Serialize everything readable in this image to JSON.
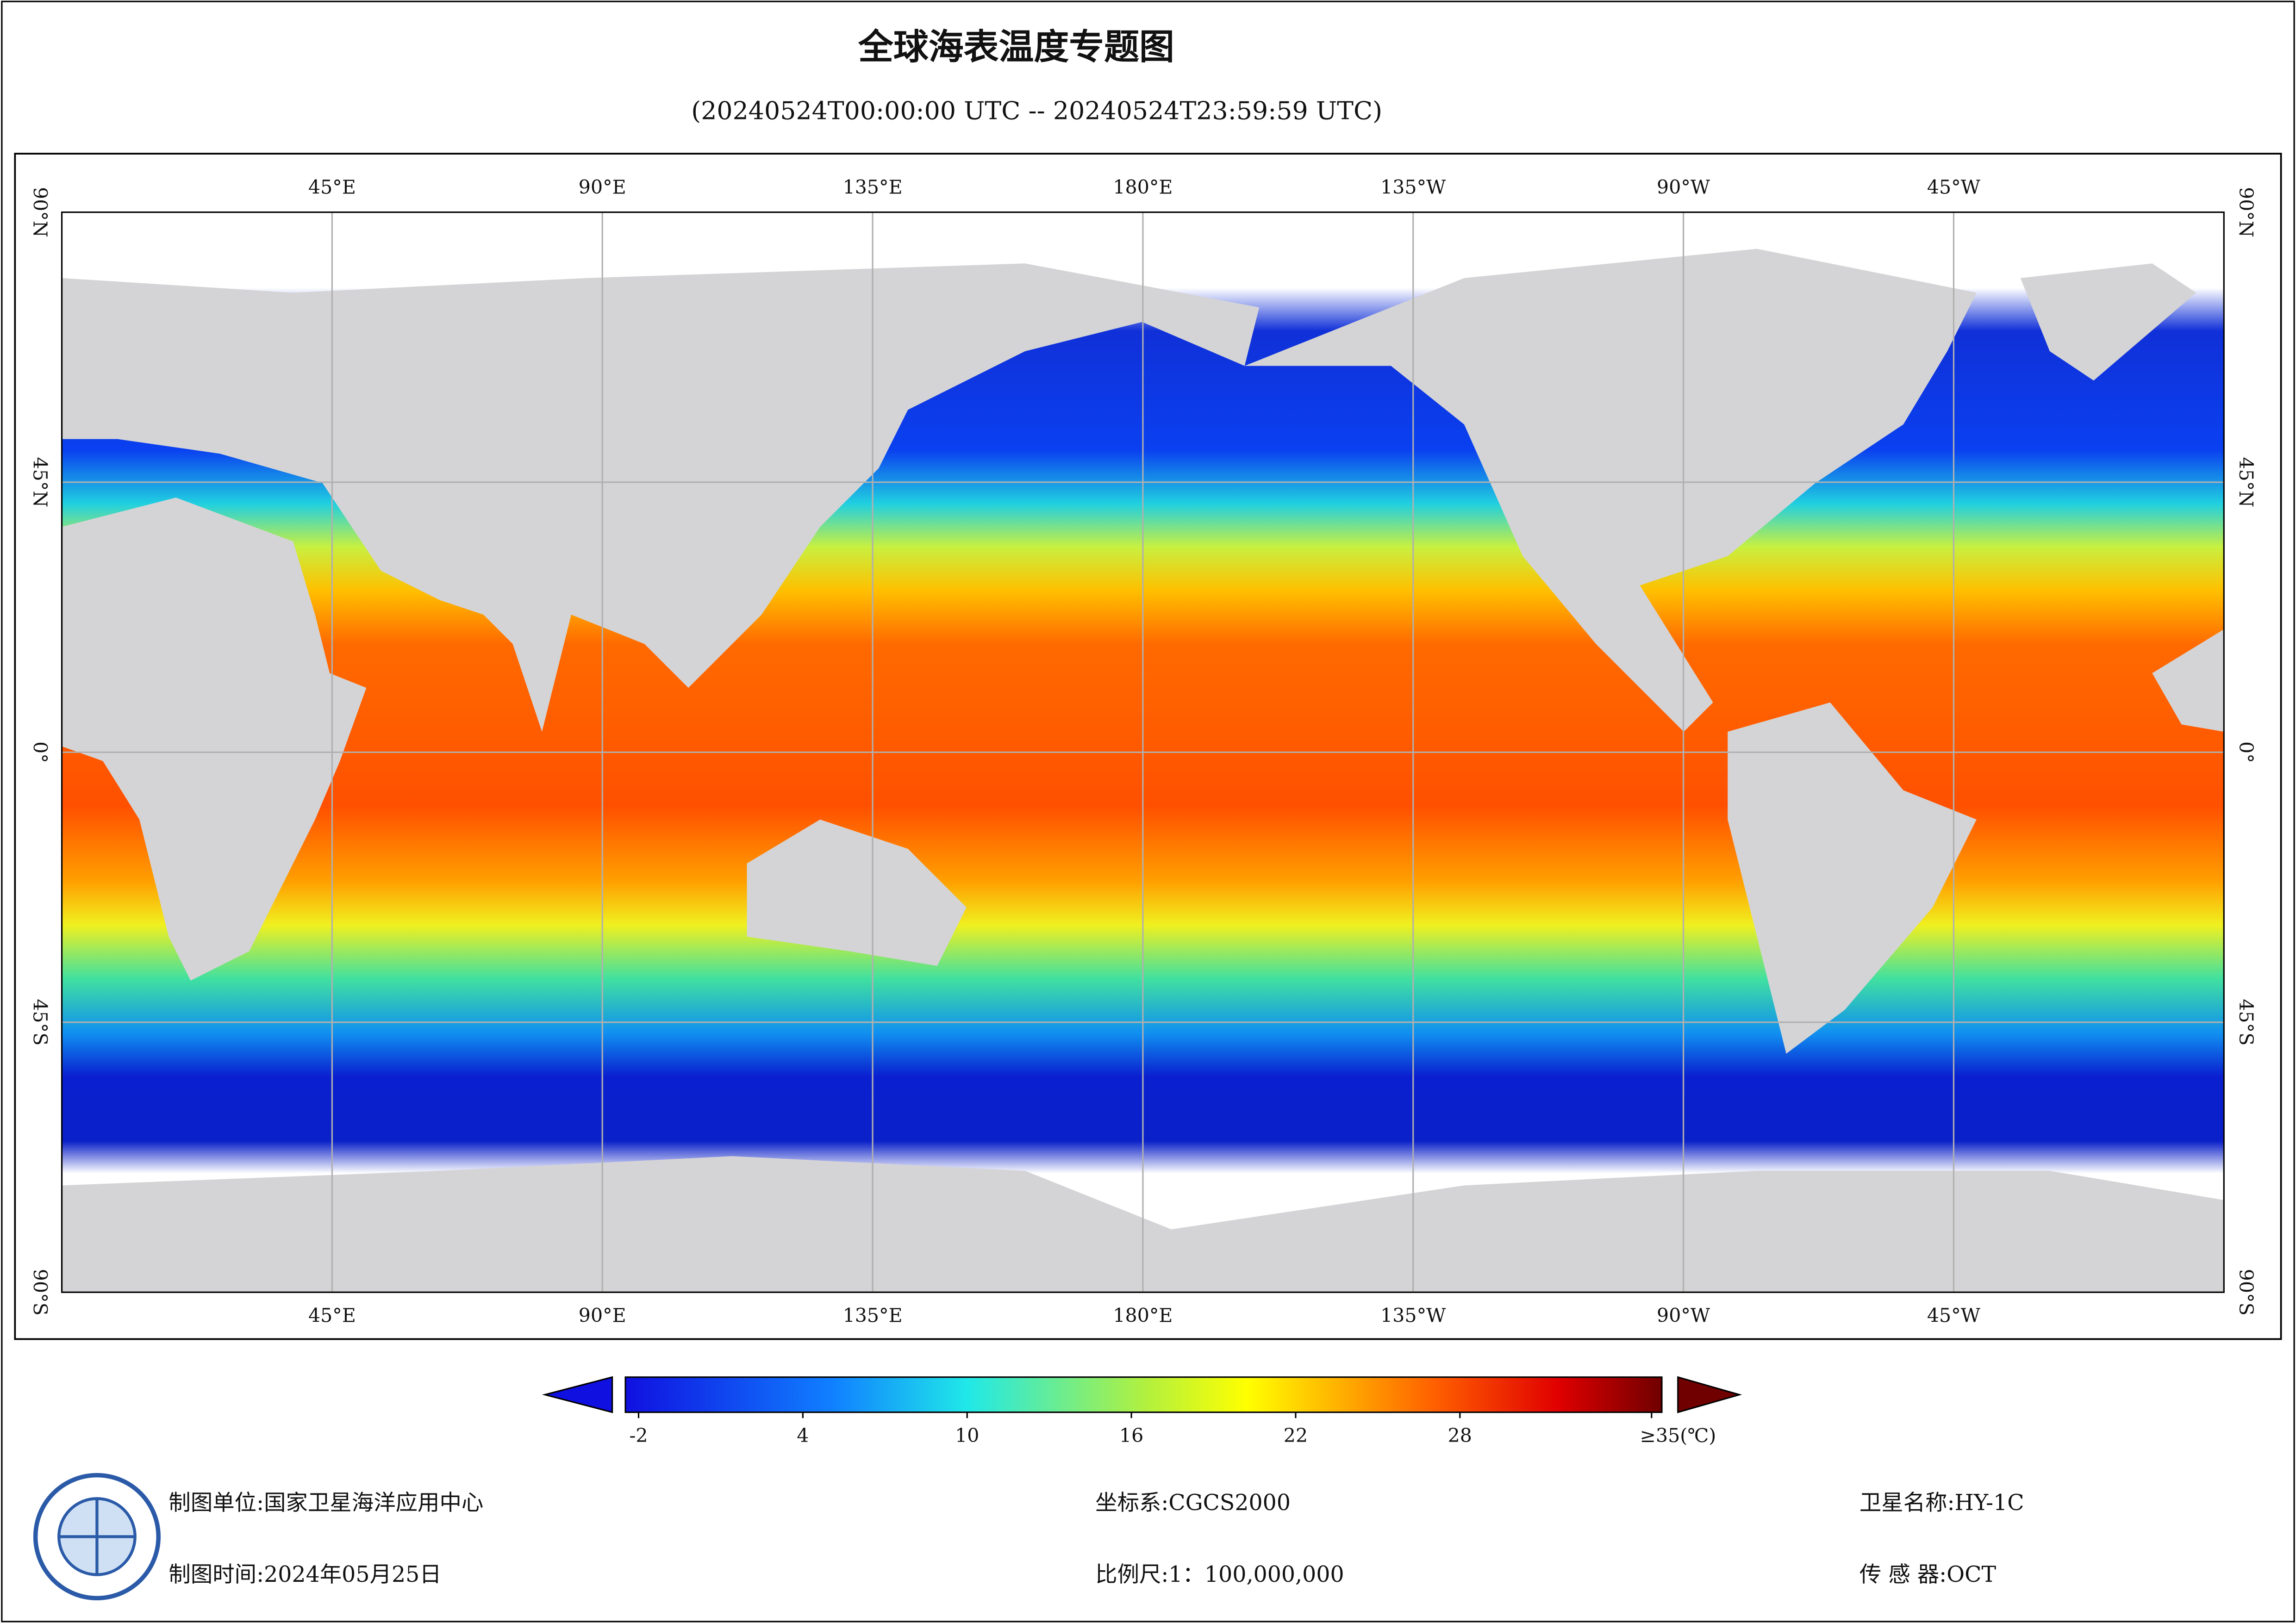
{
  "title": "全球海表温度专题图",
  "subtitle": "(20240524T00:00:00 UTC -- 20240524T23:59:59 UTC)",
  "map": {
    "lonlim": [
      0,
      360
    ],
    "latlim": [
      -90,
      90
    ],
    "lon_ticks": [
      {
        "value": 45,
        "label": "45°E"
      },
      {
        "value": 90,
        "label": "90°E"
      },
      {
        "value": 135,
        "label": "135°E"
      },
      {
        "value": 180,
        "label": "180°E"
      },
      {
        "value": -135,
        "label": "135°W"
      },
      {
        "value": -90,
        "label": "90°W"
      },
      {
        "value": -45,
        "label": "45°W"
      }
    ],
    "lat_ticks": [
      {
        "value": 90,
        "label": "90°N"
      },
      {
        "value": 45,
        "label": "45°N"
      },
      {
        "value": 0,
        "label": "0°"
      },
      {
        "value": -45,
        "label": "45°S"
      },
      {
        "value": -90,
        "label": "90°S"
      }
    ],
    "grid": true
  },
  "colorbar": {
    "ticks": [
      -2,
      4,
      10,
      16,
      22,
      28,
      {
        "value": 35,
        "label": "≥35(℃)"
      }
    ]
  },
  "footer": [
    {
      "label": "制图单位:",
      "value": "国家卫星海洋应用中心"
    },
    {
      "label": "制图时间:",
      "value": "2024年05月25日"
    },
    {
      "label": "坐标系:",
      "value": "CGCS2000"
    },
    {
      "label": "比例尺:",
      "value": "1：100,000,000"
    },
    {
      "label": "卫星名称:",
      "value": "HY-1C"
    },
    {
      "label": "传 感 器:",
      "value": "OCT"
    }
  ]
}
